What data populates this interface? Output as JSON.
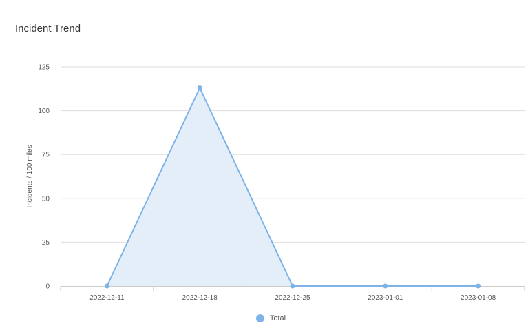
{
  "title": "Incident Trend",
  "colors": {
    "series": "#7eb3e8",
    "area": "#e3eef9",
    "grid": "#dddddd",
    "axis": "#cccccc",
    "text": "#555555"
  },
  "chart_data": {
    "type": "area",
    "title": "Incident Trend",
    "xlabel": "",
    "ylabel": "Incidents / 100 miles",
    "categories": [
      "2022-12-11",
      "2022-12-18",
      "2022-12-25",
      "2023-01-01",
      "2023-01-08"
    ],
    "series": [
      {
        "name": "Total",
        "values": [
          0,
          113,
          0,
          0,
          0
        ]
      }
    ],
    "y_ticks": [
      0,
      25,
      50,
      75,
      100,
      125
    ],
    "ylim": [
      0,
      125
    ],
    "grid": true,
    "legend_position": "bottom"
  },
  "legend": {
    "items": [
      {
        "label": "Total"
      }
    ]
  }
}
